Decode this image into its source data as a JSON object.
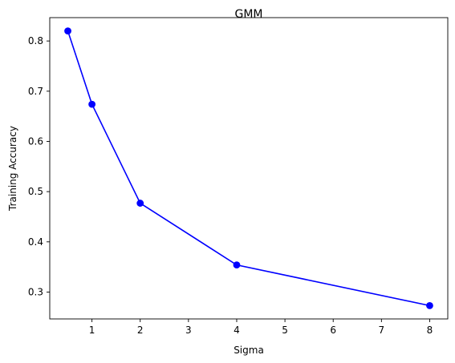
{
  "chart_data": {
    "type": "line",
    "title": "GMM",
    "xlabel": "Sigma",
    "ylabel": "Training Accuracy",
    "x": [
      0.5,
      1,
      2,
      4,
      8
    ],
    "series": [
      {
        "values": [
          0.82,
          0.674,
          0.477,
          0.354,
          0.273
        ],
        "color": "#0000ff",
        "marker": "circle"
      }
    ],
    "xlim": [
      0.125,
      8.375
    ],
    "ylim": [
      0.2465,
      0.8465
    ],
    "xticks": [
      1,
      2,
      3,
      4,
      5,
      6,
      7,
      8
    ],
    "yticks": [
      0.3,
      0.4,
      0.5,
      0.6,
      0.7,
      0.8
    ],
    "xtick_labels": [
      "1",
      "2",
      "3",
      "4",
      "5",
      "6",
      "7",
      "8"
    ],
    "ytick_labels": [
      "0.3",
      "0.4",
      "0.5",
      "0.6",
      "0.7",
      "0.8"
    ],
    "grid": false,
    "legend": false
  }
}
